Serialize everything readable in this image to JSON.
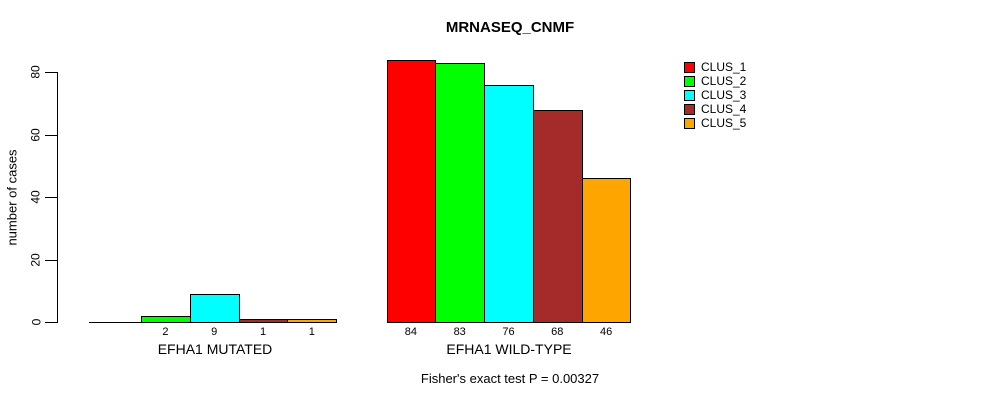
{
  "chart_data": {
    "type": "bar",
    "title": "MRNASEQ_CNMF",
    "ylabel": "number of cases",
    "xlabel": "",
    "ylim": [
      0,
      80
    ],
    "yticks": [
      0,
      20,
      40,
      60,
      80
    ],
    "grid": false,
    "legend_position": "top-right",
    "categories": [
      "EFHA1 MUTATED",
      "EFHA1 WILD-TYPE"
    ],
    "series": [
      {
        "name": "CLUS_1",
        "color": "#ff0000",
        "values": [
          0,
          84
        ]
      },
      {
        "name": "CLUS_2",
        "color": "#00ff00",
        "values": [
          2,
          83
        ]
      },
      {
        "name": "CLUS_3",
        "color": "#00ffff",
        "values": [
          9,
          76
        ]
      },
      {
        "name": "CLUS_4",
        "color": "#a52a2a",
        "values": [
          1,
          68
        ]
      },
      {
        "name": "CLUS_5",
        "color": "#ffa500",
        "values": [
          1,
          46
        ]
      }
    ],
    "bar_value_labels": [
      [
        "",
        "2",
        "9",
        "1",
        "1"
      ],
      [
        "84",
        "83",
        "76",
        "68",
        "46"
      ]
    ],
    "annotation": "Fisher's exact test P = 0.00327"
  }
}
